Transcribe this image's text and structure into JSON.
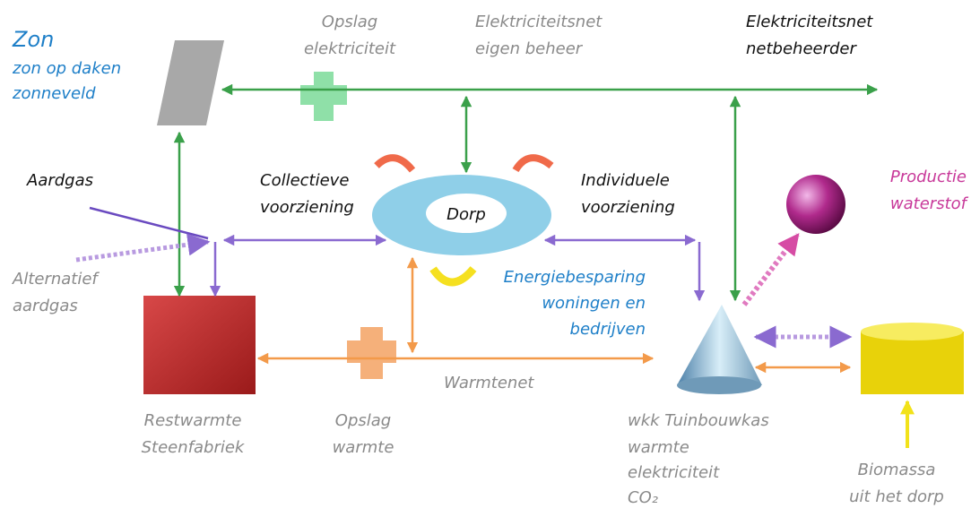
{
  "nodes": [
    {
      "lines": [
        "Zon",
        "zon op daken",
        "zonneveld"
      ]
    },
    {
      "lines": [
        "Opslag",
        "elektriciteit"
      ]
    },
    {
      "lines": [
        "Elektriciteitsnet",
        "eigen beheer"
      ]
    },
    {
      "lines": [
        "Elektriciteitsnet",
        "netbeheerder"
      ]
    },
    {
      "lines": [
        "Aardgas"
      ]
    },
    {
      "lines": [
        "Alternatief",
        "aardgas"
      ]
    },
    {
      "lines": [
        "Collectieve",
        "voorziening"
      ]
    },
    {
      "lines": [
        "Dorp"
      ]
    },
    {
      "lines": [
        "Individuele",
        "voorziening"
      ]
    },
    {
      "lines": [
        "Productie",
        "waterstof"
      ]
    },
    {
      "lines": [
        "Energiebesparing",
        "woningen en",
        "bedrijven"
      ]
    },
    {
      "lines": [
        "Warmtenet"
      ]
    },
    {
      "lines": [
        "Restwarmte",
        "Steenfabriek"
      ]
    },
    {
      "lines": [
        "Opslag",
        "warmte"
      ]
    },
    {
      "lines": [
        "wkk Tuinbouwkas",
        "warmte",
        "elektriciteit",
        "CO₂"
      ]
    },
    {
      "lines": [
        "Biomassa",
        "uit het dorp"
      ]
    }
  ]
}
